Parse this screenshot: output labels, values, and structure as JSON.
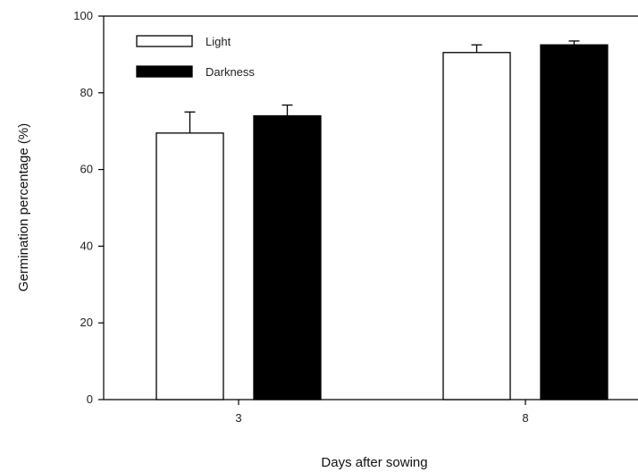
{
  "chart_data": {
    "type": "bar",
    "title": "",
    "xlabel": "Days after sowing",
    "ylabel": "Germination percentage (%)",
    "categories": [
      "3",
      "8"
    ],
    "ylim": [
      0,
      100
    ],
    "yticks": [
      "0",
      "20",
      "40",
      "60",
      "80",
      "100"
    ],
    "grid": false,
    "legend_position": "top-left",
    "series": [
      {
        "name": "Light",
        "values": [
          69.5,
          90.5
        ],
        "errors": [
          5.5,
          2.0
        ],
        "color": "#ffffff",
        "stroke": "#000000"
      },
      {
        "name": "Darkness",
        "values": [
          74.0,
          92.5
        ],
        "errors": [
          2.8,
          1.0
        ],
        "color": "#000000",
        "stroke": "#000000"
      }
    ]
  }
}
